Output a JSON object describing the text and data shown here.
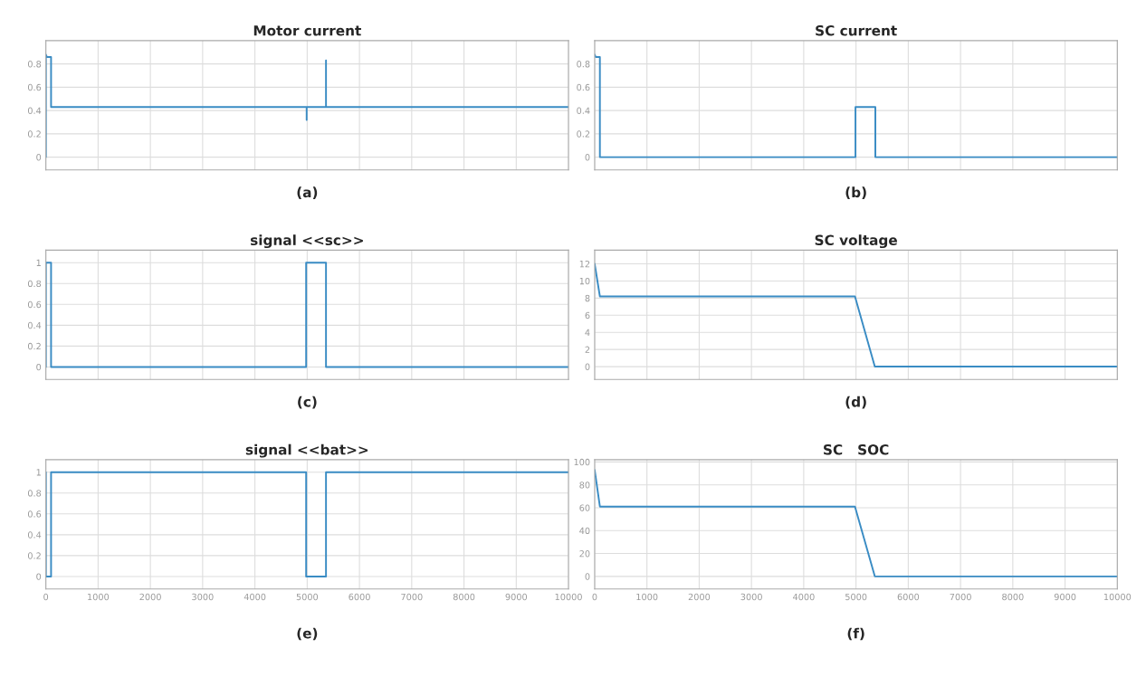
{
  "chart_data": [
    {
      "type": "line",
      "title": "Motor current",
      "annotations": [
        "(a)"
      ],
      "color": "#3a8cc4",
      "grid": true,
      "tick_labels": "y",
      "x": [
        0,
        0,
        20,
        100,
        100,
        4990,
        4990,
        4990,
        5360,
        5360,
        5360,
        10000
      ],
      "values": [
        0,
        0.88,
        0.86,
        0.86,
        0.43,
        0.43,
        0.32,
        0.43,
        0.43,
        0.83,
        0.43,
        0.43
      ],
      "xlim": [
        0,
        10000
      ],
      "xticks": [
        0,
        1000,
        2000,
        3000,
        4000,
        5000,
        6000,
        7000,
        8000,
        9000,
        10000
      ],
      "ylim": [
        -0.11,
        1.0
      ],
      "yticks": [
        0,
        0.2,
        0.4,
        0.6,
        0.8
      ]
    },
    {
      "type": "line",
      "title": "SC current",
      "annotations": [
        "(b)"
      ],
      "color": "#3a8cc4",
      "grid": true,
      "tick_labels": "y",
      "x": [
        0,
        20,
        100,
        100,
        4990,
        4990,
        5370,
        5370,
        10000
      ],
      "values": [
        0.88,
        0.86,
        0.86,
        0,
        0,
        0.43,
        0.43,
        0,
        0
      ],
      "xlim": [
        0,
        10000
      ],
      "xticks": [
        0,
        1000,
        2000,
        3000,
        4000,
        5000,
        6000,
        7000,
        8000,
        9000,
        10000
      ],
      "ylim": [
        -0.11,
        1.0
      ],
      "yticks": [
        0,
        0.2,
        0.4,
        0.6,
        0.8
      ]
    },
    {
      "type": "line",
      "title": "signal <<sc>>",
      "annotations": [
        "(c)"
      ],
      "color": "#3a8cc4",
      "grid": true,
      "tick_labels": "y",
      "x": [
        0,
        0,
        100,
        100,
        4980,
        4980,
        5360,
        5360,
        10000
      ],
      "values": [
        0,
        1,
        1,
        0,
        0,
        1,
        1,
        0,
        0
      ],
      "xlim": [
        0,
        10000
      ],
      "xticks": [
        0,
        1000,
        2000,
        3000,
        4000,
        5000,
        6000,
        7000,
        8000,
        9000,
        10000
      ],
      "ylim": [
        -0.12,
        1.12
      ],
      "yticks": [
        0,
        0.2,
        0.4,
        0.6,
        0.8,
        1
      ]
    },
    {
      "type": "line",
      "title": "SC voltage",
      "annotations": [
        "(d)"
      ],
      "color": "#3a8cc4",
      "grid": true,
      "tick_labels": "y",
      "x": [
        0,
        100,
        4980,
        5360,
        10000
      ],
      "values": [
        12,
        8.2,
        8.2,
        0,
        0
      ],
      "xlim": [
        0,
        10000
      ],
      "xticks": [
        0,
        1000,
        2000,
        3000,
        4000,
        5000,
        6000,
        7000,
        8000,
        9000,
        10000
      ],
      "ylim": [
        -1.5,
        13.6
      ],
      "yticks": [
        0,
        2,
        4,
        6,
        8,
        10,
        12
      ]
    },
    {
      "type": "line",
      "title": "signal <<bat>>",
      "annotations": [
        "(e)"
      ],
      "color": "#3a8cc4",
      "grid": true,
      "x": [
        0,
        0,
        100,
        100,
        4980,
        4980,
        5360,
        5360,
        10000
      ],
      "values": [
        1,
        0,
        0,
        1,
        1,
        0,
        0,
        1,
        1
      ],
      "xlim": [
        0,
        10000
      ],
      "xticks": [
        0,
        1000,
        2000,
        3000,
        4000,
        5000,
        6000,
        7000,
        8000,
        9000,
        10000
      ],
      "ylim": [
        -0.12,
        1.12
      ],
      "yticks": [
        0,
        0.2,
        0.4,
        0.6,
        0.8,
        1
      ]
    },
    {
      "type": "line",
      "title": "SC   SOC",
      "annotations": [
        "(f)"
      ],
      "color": "#3a8cc4",
      "grid": true,
      "x": [
        0,
        100,
        4980,
        5360,
        10000
      ],
      "values": [
        93,
        61,
        61,
        0,
        0
      ],
      "xlim": [
        0,
        10000
      ],
      "xticks": [
        0,
        1000,
        2000,
        3000,
        4000,
        5000,
        6000,
        7000,
        8000,
        9000,
        10000
      ],
      "ylim": [
        -11,
        102
      ],
      "yticks": [
        0,
        20,
        40,
        60,
        80,
        100
      ]
    }
  ]
}
